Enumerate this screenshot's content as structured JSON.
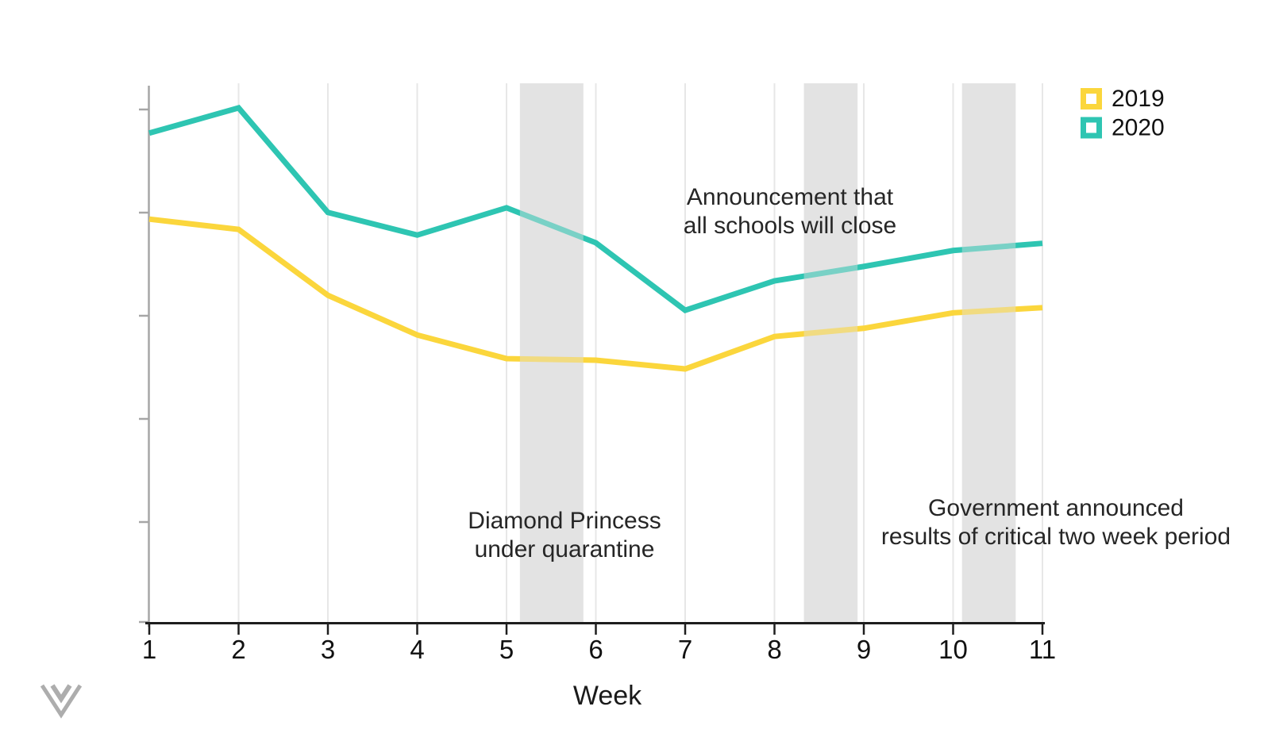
{
  "chart_data": {
    "type": "line",
    "x": [
      1,
      2,
      3,
      4,
      5,
      6,
      7,
      8,
      9,
      10,
      11
    ],
    "x_tick_labels": [
      "1",
      "2",
      "3",
      "4",
      "5",
      "6",
      "7",
      "8",
      "9",
      "10",
      "11"
    ],
    "xlabel": "Week",
    "ylim": [
      0,
      105
    ],
    "y_axis": {
      "tick_labels": "none",
      "note": "y axis has 6 unlabeled gray tick marks; values below are an estimated index where 0 = axis bottom and 100 = the 2020 week-2 peak"
    },
    "grid": "vertical gridlines at each week, no horizontal gridlines",
    "legend_position": "top-right",
    "band_color": "#E3E3E3",
    "series": [
      {
        "name": "2019",
        "color": "#FBD63C",
        "values": [
          78.4,
          76.4,
          63.6,
          55.9,
          51.3,
          51.0,
          49.3,
          55.6,
          57.2,
          60.2,
          61.2
        ]
      },
      {
        "name": "2020",
        "color": "#2EC5B2",
        "values": [
          95.1,
          100.0,
          79.7,
          75.3,
          80.6,
          73.8,
          60.7,
          66.4,
          69.2,
          72.3,
          73.7
        ]
      }
    ],
    "highlight_bands": [
      {
        "from_week": 5.15,
        "to_week": 5.86,
        "label": "Diamond Princess under quarantine"
      },
      {
        "from_week": 8.33,
        "to_week": 8.93,
        "label": "Announcement that all schools will close"
      },
      {
        "from_week": 10.1,
        "to_week": 10.7,
        "label": "Government announced results of critical two week period"
      }
    ]
  },
  "legend": {
    "items": [
      {
        "label": "2019",
        "color": "#FBD63C"
      },
      {
        "label": "2020",
        "color": "#2EC5B2"
      }
    ]
  },
  "annotations": {
    "schools": {
      "line1": "Announcement that",
      "line2": "all schools will close"
    },
    "diamond": {
      "line1": "Diamond Princess",
      "line2": "under quarantine"
    },
    "government": {
      "line1": "Government announced",
      "line2": "results of critical two week period"
    }
  },
  "axis": {
    "xlabel": "Week"
  },
  "colors": {
    "x_axis": "#1E1E1E",
    "y_axis": "#A6A6A6",
    "gridline": "#E7E7E7",
    "annotation_text": "#262626",
    "logo_gray": "#ADADAD"
  },
  "icons": {
    "logo": "chevron-v-logo-icon"
  }
}
